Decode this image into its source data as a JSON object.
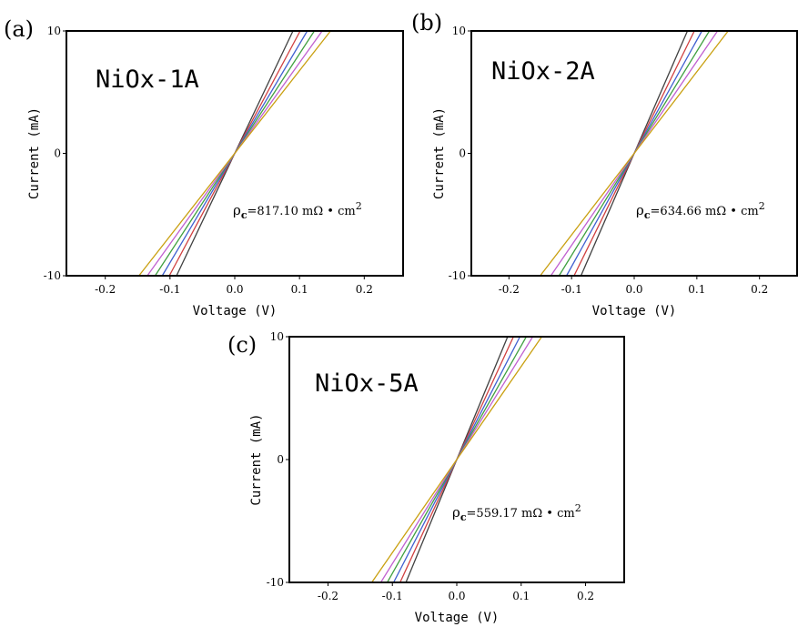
{
  "chart_data": [
    {
      "type": "line",
      "panel": "(a)",
      "title": "NiOx-1A",
      "annotation": "ρc=817.10 mΩ • cm²",
      "annotation_main": "ρ",
      "annotation_sub": "c",
      "annotation_rest": "=817.10 mΩ • cm",
      "annotation_sup": "2",
      "xlabel": "Voltage (V)",
      "ylabel": "Current (mA)",
      "xlim": [
        -0.26,
        0.26
      ],
      "ylim": [
        -10,
        10
      ],
      "xticks": [
        -0.2,
        -0.1,
        0.0,
        0.1,
        0.2
      ],
      "xtick_labels": [
        "-0.2",
        "-0.1",
        "0.0",
        "0.1",
        "0.2"
      ],
      "yticks": [
        -10,
        0,
        10
      ],
      "ytick_labels": [
        "-10",
        "0",
        "10"
      ],
      "series": [
        {
          "color": "#404040",
          "x": [
            -0.09,
            0.09
          ],
          "y": [
            -10,
            10
          ]
        },
        {
          "color": "#d04040",
          "x": [
            -0.101,
            0.101
          ],
          "y": [
            -10,
            10
          ]
        },
        {
          "color": "#4060d0",
          "x": [
            -0.112,
            0.112
          ],
          "y": [
            -10,
            10
          ]
        },
        {
          "color": "#40a040",
          "x": [
            -0.123,
            0.123
          ],
          "y": [
            -10,
            10
          ]
        },
        {
          "color": "#c060d0",
          "x": [
            -0.135,
            0.135
          ],
          "y": [
            -10,
            10
          ]
        },
        {
          "color": "#c9a010",
          "x": [
            -0.148,
            0.148
          ],
          "y": [
            -10,
            10
          ]
        }
      ]
    },
    {
      "type": "line",
      "panel": "(b)",
      "title": "NiOx-2A",
      "annotation": "ρc=634.66 mΩ • cm²",
      "annotation_main": "ρ",
      "annotation_sub": "c",
      "annotation_rest": "=634.66 mΩ • cm",
      "annotation_sup": "2",
      "xlabel": "Voltage (V)",
      "ylabel": "Current (mA)",
      "xlim": [
        -0.26,
        0.26
      ],
      "ylim": [
        -10,
        10
      ],
      "xticks": [
        -0.2,
        -0.1,
        0.0,
        0.1,
        0.2
      ],
      "xtick_labels": [
        "-0.2",
        "-0.1",
        "0.0",
        "0.1",
        "0.2"
      ],
      "yticks": [
        -10,
        0,
        10
      ],
      "ytick_labels": [
        "-10",
        "0",
        "10"
      ],
      "series": [
        {
          "color": "#404040",
          "x": [
            -0.085,
            0.085
          ],
          "y": [
            -10,
            10
          ]
        },
        {
          "color": "#d04040",
          "x": [
            -0.096,
            0.096
          ],
          "y": [
            -10,
            10
          ]
        },
        {
          "color": "#4060d0",
          "x": [
            -0.108,
            0.108
          ],
          "y": [
            -10,
            10
          ]
        },
        {
          "color": "#40a040",
          "x": [
            -0.12,
            0.12
          ],
          "y": [
            -10,
            10
          ]
        },
        {
          "color": "#c060d0",
          "x": [
            -0.133,
            0.133
          ],
          "y": [
            -10,
            10
          ]
        },
        {
          "color": "#c9a010",
          "x": [
            -0.15,
            0.15
          ],
          "y": [
            -10,
            10
          ]
        }
      ]
    },
    {
      "type": "line",
      "panel": "(c)",
      "title": "NiOx-5A",
      "annotation": "ρc=559.17 mΩ • cm²",
      "annotation_main": "ρ",
      "annotation_sub": "c",
      "annotation_rest": "=559.17 mΩ • cm",
      "annotation_sup": "2",
      "xlabel": "Voltage (V)",
      "ylabel": "Current (mA)",
      "xlim": [
        -0.26,
        0.26
      ],
      "ylim": [
        -10,
        10
      ],
      "xticks": [
        -0.2,
        -0.1,
        0.0,
        0.1,
        0.2
      ],
      "xtick_labels": [
        "-0.2",
        "-0.1",
        "0.0",
        "0.1",
        "0.2"
      ],
      "yticks": [
        -10,
        0,
        10
      ],
      "ytick_labels": [
        "-10",
        "0",
        "10"
      ],
      "series": [
        {
          "color": "#404040",
          "x": [
            -0.079,
            0.079
          ],
          "y": [
            -10,
            10
          ]
        },
        {
          "color": "#d04040",
          "x": [
            -0.088,
            0.088
          ],
          "y": [
            -10,
            10
          ]
        },
        {
          "color": "#4060d0",
          "x": [
            -0.098,
            0.098
          ],
          "y": [
            -10,
            10
          ]
        },
        {
          "color": "#40a040",
          "x": [
            -0.108,
            0.108
          ],
          "y": [
            -10,
            10
          ]
        },
        {
          "color": "#c060d0",
          "x": [
            -0.118,
            0.118
          ],
          "y": [
            -10,
            10
          ]
        },
        {
          "color": "#c9a010",
          "x": [
            -0.132,
            0.132
          ],
          "y": [
            -10,
            10
          ]
        }
      ]
    }
  ]
}
